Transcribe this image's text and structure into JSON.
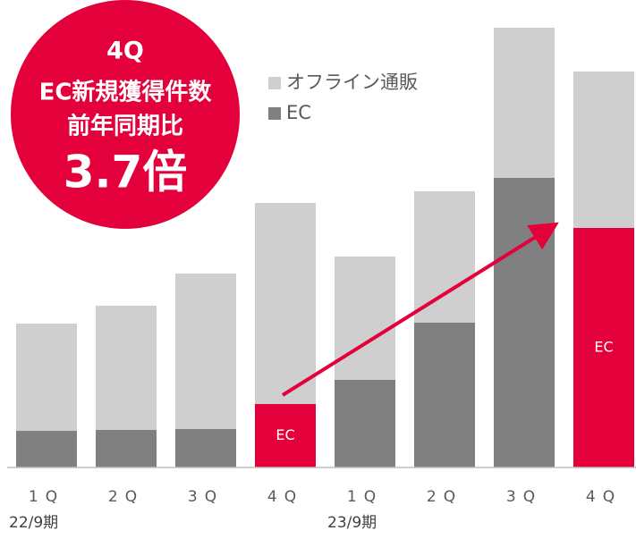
{
  "chart_data": {
    "type": "stacked_bar",
    "categories": [
      "1Q",
      "2Q",
      "3Q",
      "4Q",
      "1Q",
      "2Q",
      "3Q",
      "4Q"
    ],
    "group_labels": [
      "22/9期",
      null,
      null,
      null,
      "23/9期",
      null,
      null,
      null
    ],
    "series": [
      {
        "name": "オフライン通販",
        "color": "#d0cfd0",
        "values": [
          120,
          139,
          174,
          225,
          138,
          147,
          168,
          175
        ]
      },
      {
        "name": "EC",
        "color": "#808080",
        "values": [
          41,
          42,
          43,
          71,
          98,
          162,
          324,
          268
        ],
        "colors": [
          null,
          null,
          null,
          "#e4003a",
          null,
          null,
          null,
          "#e4003a"
        ],
        "labels": [
          null,
          null,
          null,
          "EC",
          null,
          null,
          null,
          "EC"
        ]
      }
    ],
    "ylim": [
      0,
      500
    ],
    "legend": "top",
    "annotation": {
      "lines": [
        "4Q",
        "EC新規獲得件数",
        "前年同期比",
        "3.7倍"
      ],
      "color": "#e4003a"
    }
  }
}
